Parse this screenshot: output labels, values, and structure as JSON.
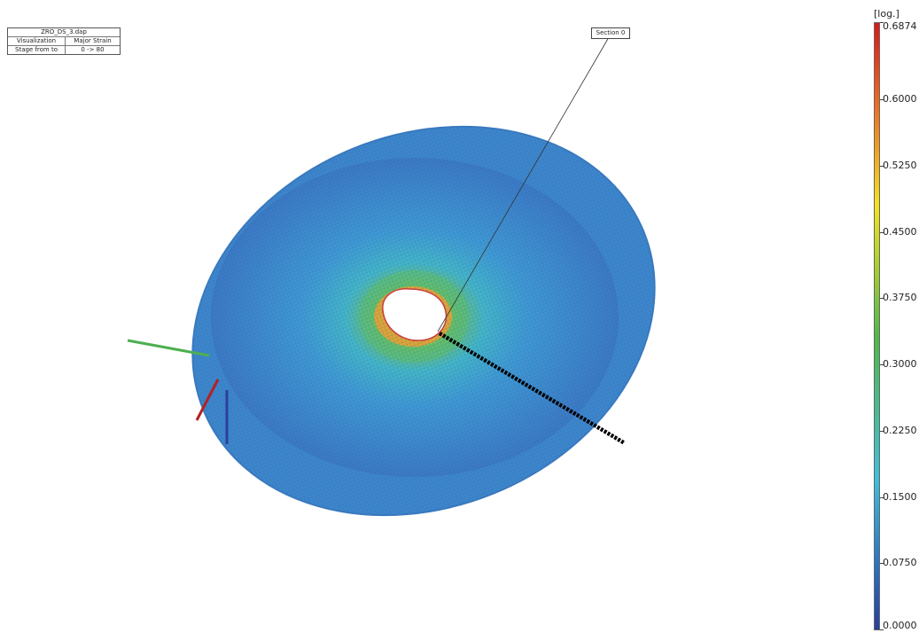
{
  "info_box": {
    "title": "ZRO_DS_3.dap",
    "rows": [
      {
        "label": "Visualization",
        "value": "Major Strain"
      },
      {
        "label": "Stage from to",
        "value": "0 -> 80"
      }
    ]
  },
  "section_label": "Section 0",
  "legend": {
    "unit": "[log.]",
    "labels": [
      "0.6874",
      "0.6000",
      "0.5250",
      "0.4500",
      "0.3750",
      "0.3000",
      "0.2250",
      "0.1500",
      "0.0750",
      "0.0000"
    ],
    "values": [
      0.6874,
      0.6,
      0.525,
      0.45,
      0.375,
      0.3,
      0.225,
      0.15,
      0.075,
      0.0
    ],
    "min": 0.0,
    "max": 0.6874,
    "colors": {
      "top": "#d7191c",
      "orange": "#f08a24",
      "yellow": "#f5e31b",
      "green": "#4fb84a",
      "cyan": "#40c0d8",
      "blue": "#2a6fc0",
      "bottom": "#2a3f9a"
    }
  },
  "axes": {
    "x_color": "#b22222",
    "y_color": "#4caf50",
    "z_color": "#2e3f9e"
  },
  "mesh": {
    "base_color": "#3f8fd0",
    "grid_color": "#2f6fae",
    "hole_rim_color": "#f0c040"
  },
  "section_path_color": "#000000"
}
